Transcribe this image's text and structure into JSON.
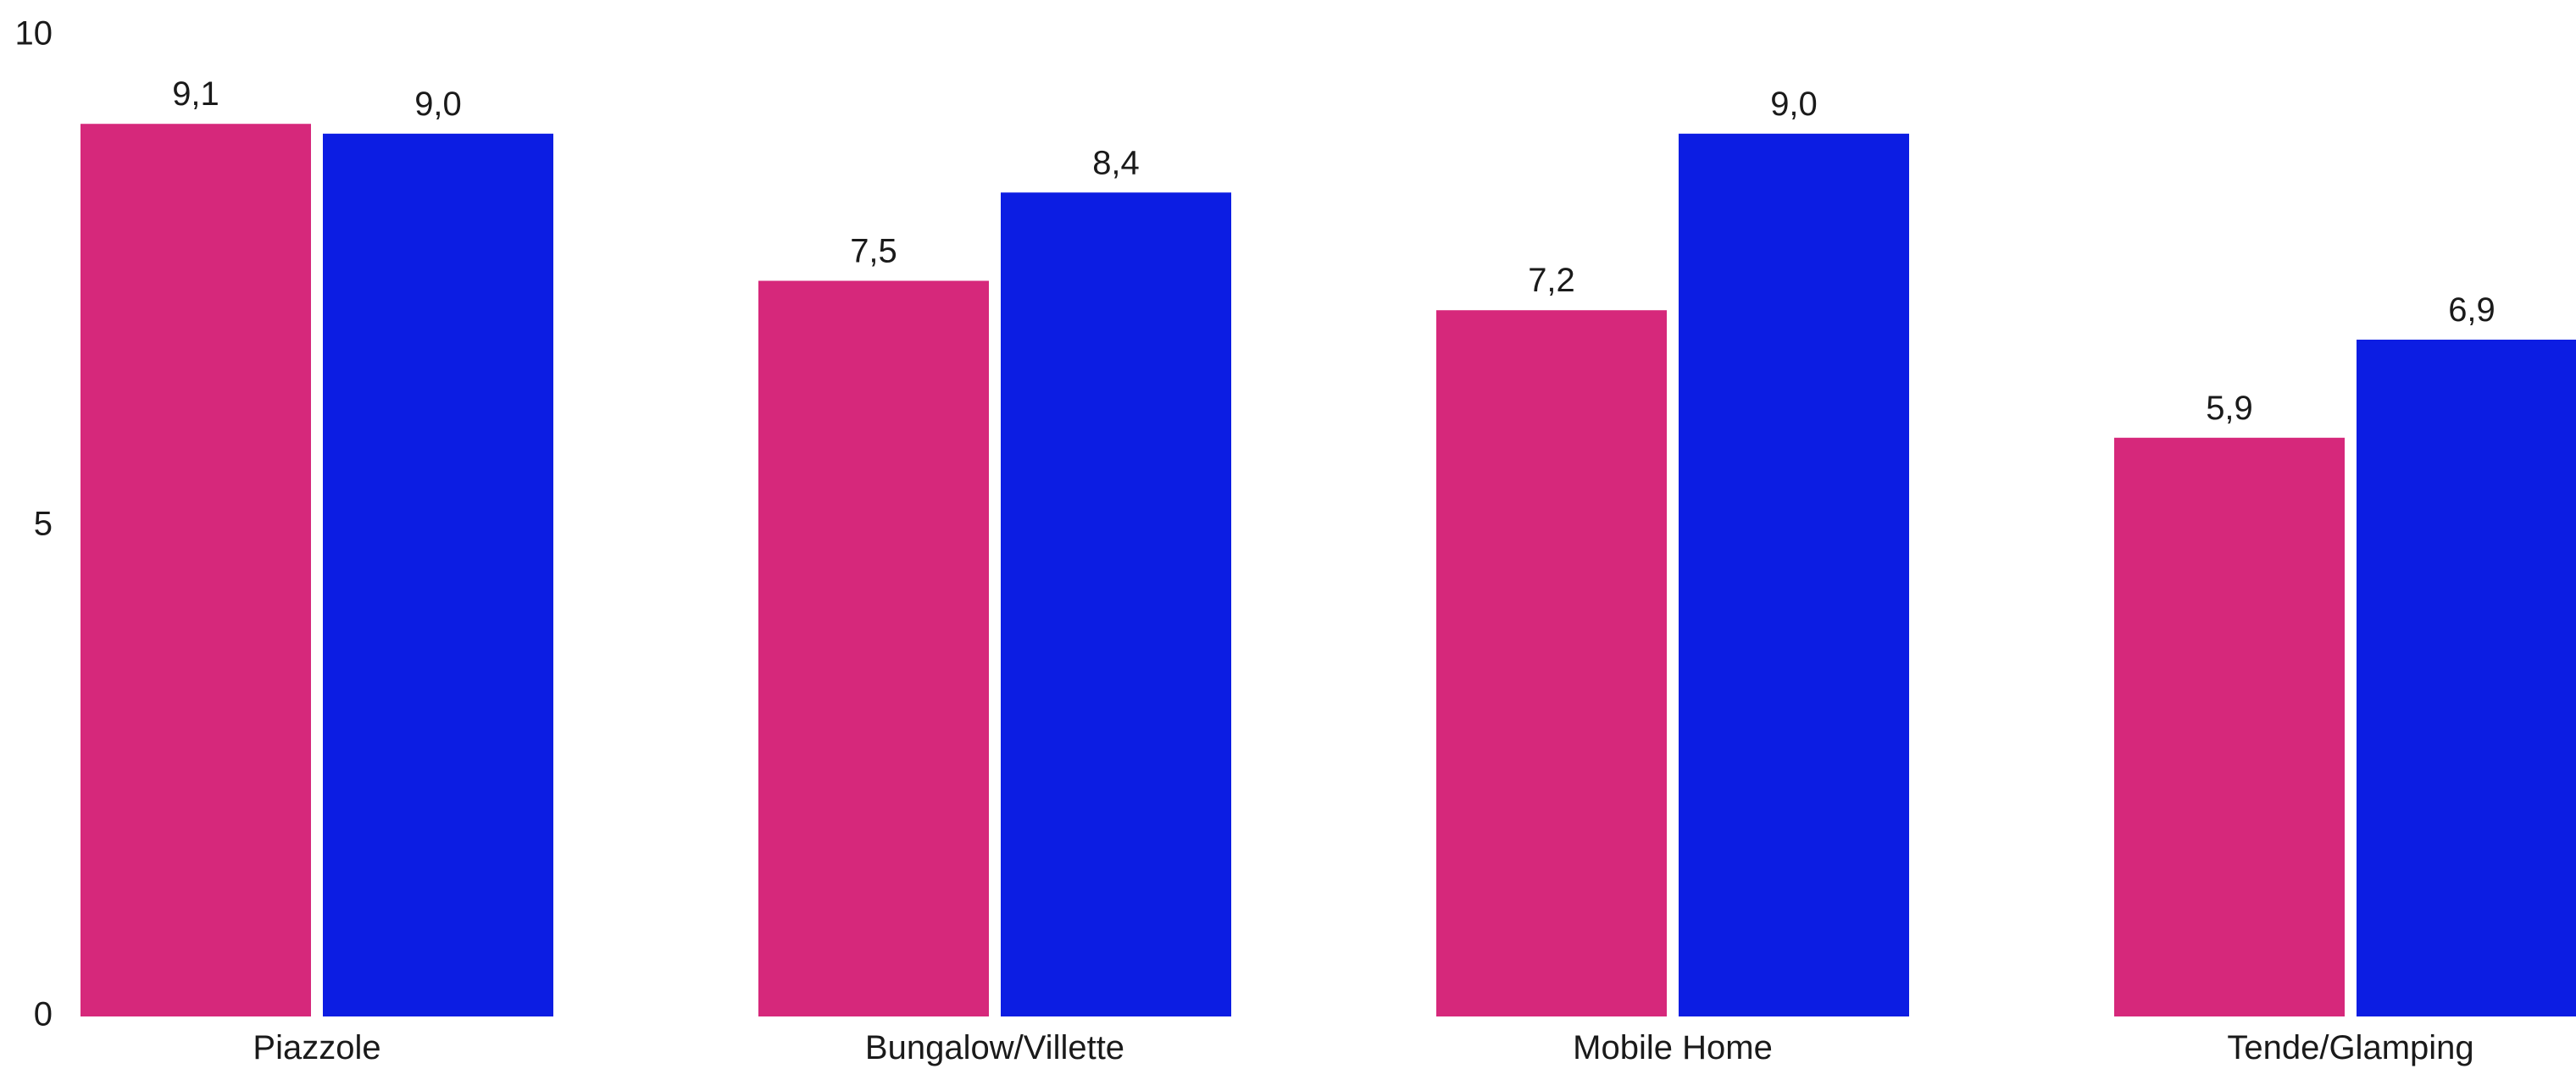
{
  "chart_data": {
    "type": "bar",
    "title": "",
    "xlabel": "",
    "ylabel": "",
    "categories": [
      "Piazzole",
      "Bungalow/Villette",
      "Mobile Home",
      "Tende/Glamping"
    ],
    "series": [
      {
        "color": "#d6287b",
        "values": [
          9.1,
          7.5,
          7.2,
          5.9
        ],
        "labels": [
          "9,1",
          "7,5",
          "7,2",
          "5,9"
        ]
      },
      {
        "color": "#0c1de3",
        "values": [
          9.0,
          8.4,
          9.0,
          6.9
        ],
        "labels": [
          "9,0",
          "8,4",
          "9,0",
          "6,9"
        ]
      }
    ],
    "ylim": [
      0,
      10
    ],
    "yticks": [
      0,
      5,
      10
    ],
    "ytick_labels": [
      "0",
      "5",
      "10"
    ],
    "grid": false,
    "legend": "none"
  }
}
